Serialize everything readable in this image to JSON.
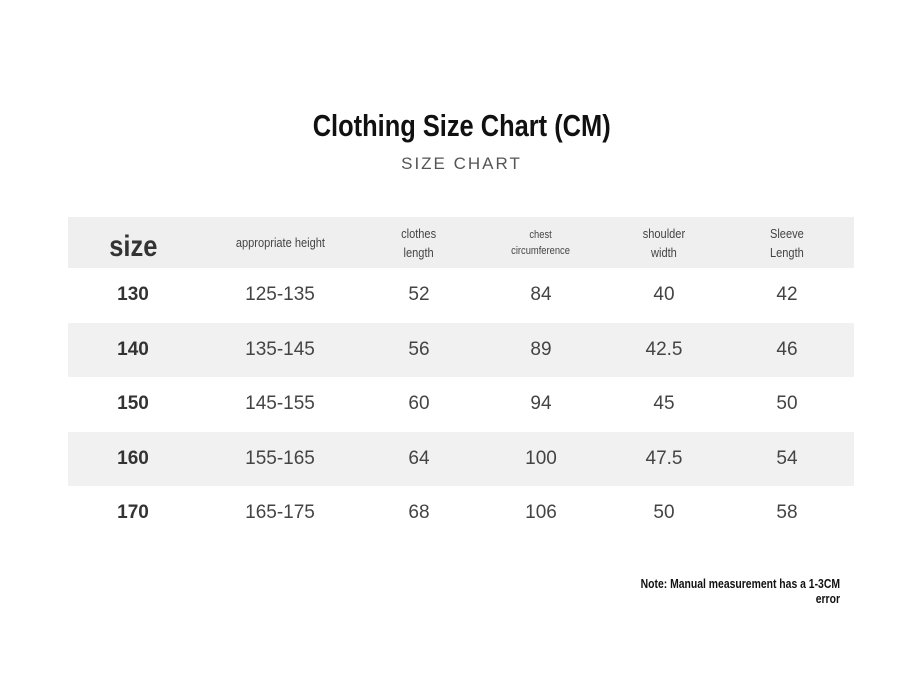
{
  "title": "Clothing Size Chart (CM)",
  "subtitle": "SIZE CHART",
  "headers": [
    "size",
    "appropriate height",
    "clothes\nlength",
    "chest\ncircumference",
    "shoulder\nwidth",
    "Sleeve\nLength"
  ],
  "rows": [
    [
      "130",
      "125-135",
      "52",
      "84",
      "40",
      "42"
    ],
    [
      "140",
      "135-145",
      "56",
      "89",
      "42.5",
      "46"
    ],
    [
      "150",
      "145-155",
      "60",
      "94",
      "45",
      "50"
    ],
    [
      "160",
      "155-165",
      "64",
      "100",
      "47.5",
      "54"
    ],
    [
      "170",
      "165-175",
      "68",
      "106",
      "50",
      "58"
    ]
  ],
  "note": "Note: Manual measurement has a 1-3CM error",
  "colors": {
    "stripe": "#f1f1f1",
    "text": "#333333"
  }
}
